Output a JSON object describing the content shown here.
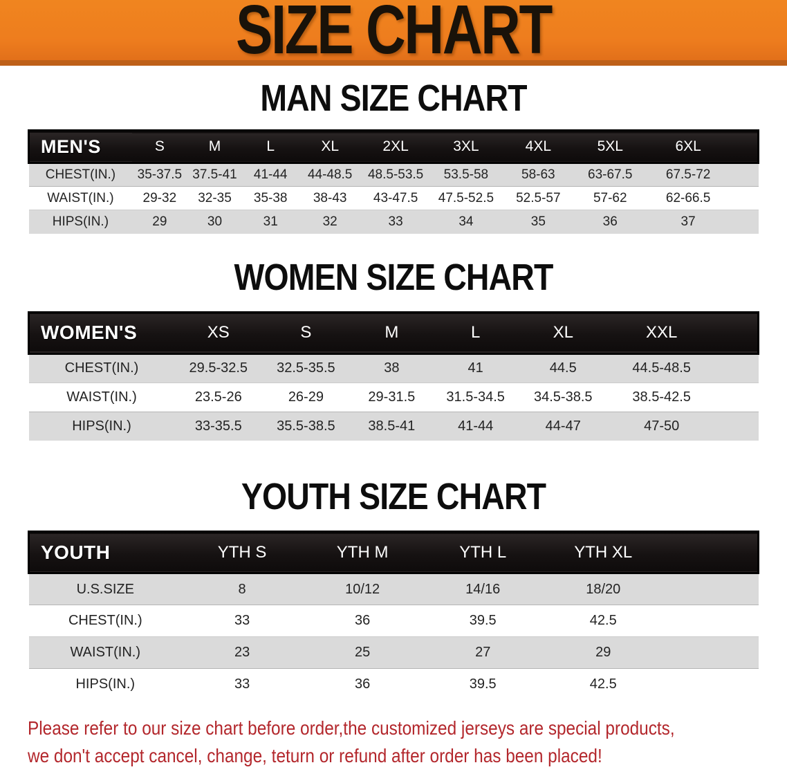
{
  "banner": {
    "title": "SIZE CHART",
    "bg_color": "#EE7D1E",
    "text_color": "#191209"
  },
  "sections": [
    {
      "heading": "MAN SIZE CHART",
      "table": {
        "header_label": "MEN'S",
        "sizes": [
          "S",
          "M",
          "L",
          "XL",
          "2XL",
          "3XL",
          "4XL",
          "5XL",
          "6XL"
        ],
        "rows": [
          {
            "label": "CHEST(IN.)",
            "values": [
              "35-37.5",
              "37.5-41",
              "41-44",
              "44-48.5",
              "48.5-53.5",
              "53.5-58",
              "58-63",
              "63-67.5",
              "67.5-72"
            ]
          },
          {
            "label": "WAIST(IN.)",
            "values": [
              "29-32",
              "32-35",
              "35-38",
              "38-43",
              "43-47.5",
              "47.5-52.5",
              "52.5-57",
              "57-62",
              "62-66.5"
            ]
          },
          {
            "label": "HIPS(IN.)",
            "values": [
              "29",
              "30",
              "31",
              "32",
              "33",
              "34",
              "35",
              "36",
              "37"
            ]
          }
        ]
      }
    },
    {
      "heading": "WOMEN SIZE CHART",
      "table": {
        "header_label": "WOMEN'S",
        "sizes": [
          "XS",
          "S",
          "M",
          "L",
          "XL",
          "XXL"
        ],
        "rows": [
          {
            "label": "CHEST(IN.)",
            "values": [
              "29.5-32.5",
              "32.5-35.5",
              "38",
              "41",
              "44.5",
              "44.5-48.5"
            ]
          },
          {
            "label": "WAIST(IN.)",
            "values": [
              "23.5-26",
              "26-29",
              "29-31.5",
              "31.5-34.5",
              "34.5-38.5",
              "38.5-42.5"
            ]
          },
          {
            "label": "HIPS(IN.)",
            "values": [
              "33-35.5",
              "35.5-38.5",
              "38.5-41",
              "41-44",
              "44-47",
              "47-50"
            ]
          }
        ]
      }
    },
    {
      "heading": "YOUTH SIZE CHART",
      "table": {
        "header_label": "YOUTH",
        "sizes": [
          "YTH S",
          "YTH M",
          "YTH L",
          "YTH XL"
        ],
        "rows": [
          {
            "label": "U.S.SIZE",
            "values": [
              "8",
              "10/12",
              "14/16",
              "18/20"
            ]
          },
          {
            "label": "CHEST(IN.)",
            "values": [
              "33",
              "36",
              "39.5",
              "42.5"
            ]
          },
          {
            "label": "WAIST(IN.)",
            "values": [
              "23",
              "25",
              "27",
              "29"
            ]
          },
          {
            "label": "HIPS(IN.)",
            "values": [
              "33",
              "36",
              "39.5",
              "42.5"
            ]
          }
        ]
      }
    }
  ],
  "disclaimer": {
    "line1": "Please refer to our size chart before order,the customized jerseys are special products,",
    "line2": "we don't accept cancel, change, teturn or refund after order has been placed!",
    "text_color": "#B3272C"
  },
  "colors": {
    "header_row_black": "#161212",
    "stripe_gray": "#DADADA",
    "stripe_white": "#FFFFFF"
  }
}
